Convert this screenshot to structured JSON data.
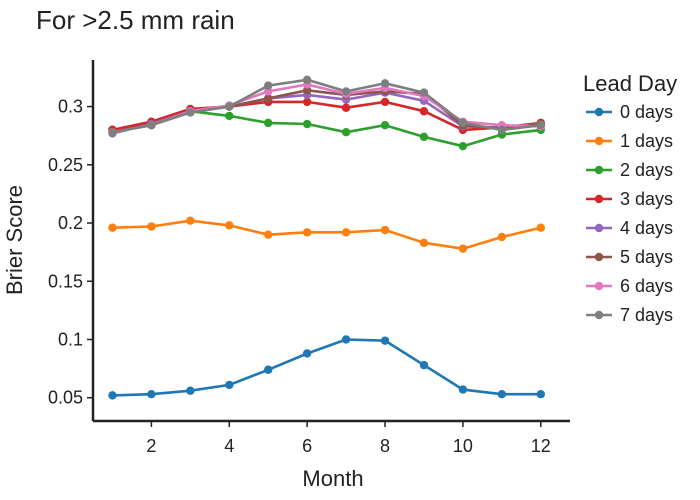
{
  "chart_data": {
    "type": "line",
    "title": "For >2.5 mm rain",
    "xlabel": "Month",
    "ylabel": "Brier Score",
    "x": [
      1,
      2,
      3,
      4,
      5,
      6,
      7,
      8,
      9,
      10,
      11,
      12
    ],
    "xticks": [
      2,
      4,
      6,
      8,
      10,
      12
    ],
    "yticks": [
      0.05,
      0.1,
      0.15,
      0.2,
      0.25,
      0.3
    ],
    "ytick_labels": [
      "0.05",
      "0.1",
      "0.15",
      "0.2",
      "0.25",
      "0.3"
    ],
    "xlim": [
      0.5,
      12.75
    ],
    "ylim": [
      0.03,
      0.34
    ],
    "grid": false,
    "legend": {
      "title": "Lead Day",
      "placement": "right"
    },
    "series": [
      {
        "name": "0 days",
        "color": "#1f77b4",
        "values": [
          0.052,
          0.053,
          0.056,
          0.061,
          0.074,
          0.088,
          0.1,
          0.099,
          0.078,
          0.057,
          0.053,
          0.053
        ]
      },
      {
        "name": "1 days",
        "color": "#ff7f0e",
        "values": [
          0.196,
          0.197,
          0.202,
          0.198,
          0.19,
          0.192,
          0.192,
          0.194,
          0.183,
          0.178,
          0.188,
          0.196
        ]
      },
      {
        "name": "2 days",
        "color": "#2ca02c",
        "values": [
          0.28,
          0.285,
          0.296,
          0.292,
          0.286,
          0.285,
          0.278,
          0.284,
          0.274,
          0.266,
          0.276,
          0.28
        ]
      },
      {
        "name": "3 days",
        "color": "#d62728",
        "values": [
          0.28,
          0.287,
          0.298,
          0.3,
          0.304,
          0.304,
          0.299,
          0.304,
          0.296,
          0.28,
          0.282,
          0.286
        ]
      },
      {
        "name": "4 days",
        "color": "#9467bd",
        "values": [
          0.277,
          0.285,
          0.296,
          0.3,
          0.307,
          0.31,
          0.306,
          0.312,
          0.305,
          0.283,
          0.282,
          0.285
        ]
      },
      {
        "name": "5 days",
        "color": "#8c564b",
        "values": [
          0.278,
          0.284,
          0.295,
          0.3,
          0.307,
          0.314,
          0.31,
          0.313,
          0.311,
          0.284,
          0.281,
          0.285
        ]
      },
      {
        "name": "6 days",
        "color": "#e377c2",
        "values": [
          0.278,
          0.284,
          0.296,
          0.301,
          0.313,
          0.319,
          0.311,
          0.316,
          0.309,
          0.287,
          0.284,
          0.283
        ]
      },
      {
        "name": "7 days",
        "color": "#7f7f7f",
        "values": [
          0.278,
          0.284,
          0.295,
          0.3,
          0.318,
          0.323,
          0.313,
          0.32,
          0.312,
          0.286,
          0.28,
          0.284
        ]
      }
    ]
  }
}
